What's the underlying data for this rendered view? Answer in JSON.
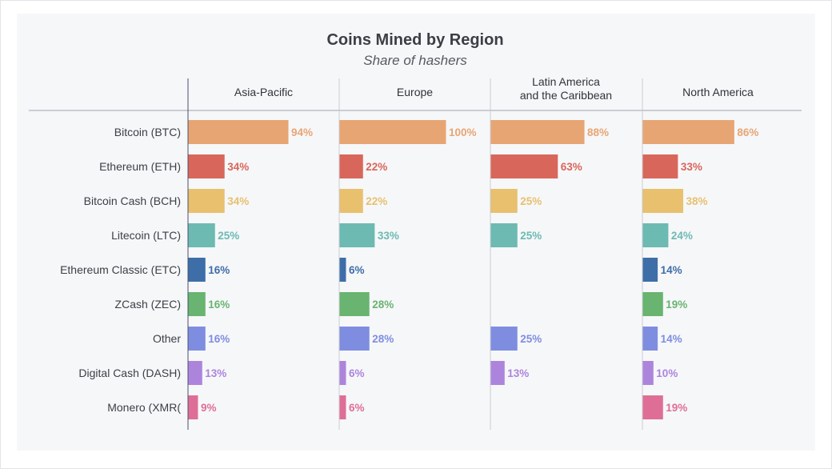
{
  "chart_data": {
    "type": "bar",
    "title": "Coins Mined by Region",
    "subtitle": "Share of hashers",
    "categories": [
      "Bitcoin (BTC)",
      "Ethereum (ETH)",
      "Bitcoin Cash (BCH)",
      "Litecoin (LTC)",
      "Ethereum Classic (ETC)",
      "ZCash (ZEC)",
      "Other",
      "Digital Cash (DASH)",
      "Monero (XMR("
    ],
    "category_colors": [
      "#e8a574",
      "#d9665a",
      "#e8c06e",
      "#6cbab2",
      "#3e6ea8",
      "#68b470",
      "#7f8de0",
      "#ad84dc",
      "#df6e97"
    ],
    "value_label_colors": [
      "#e8a574",
      "#d9665a",
      "#e8c06e",
      "#6cbab2",
      "#3e6ea8",
      "#68b470",
      "#7f8de0",
      "#ad84dc",
      "#df6e97"
    ],
    "unit": "%",
    "xlim": [
      0,
      100
    ],
    "series": [
      {
        "name": "Asia-Pacific",
        "values": [
          94,
          34,
          34,
          25,
          16,
          16,
          16,
          13,
          9
        ]
      },
      {
        "name": "Europe",
        "values": [
          100,
          22,
          22,
          33,
          6,
          28,
          28,
          6,
          6
        ]
      },
      {
        "name": "Latin America and the Caribbean",
        "name_lines": [
          "Latin America",
          "and the Caribbean"
        ],
        "values": [
          88,
          63,
          25,
          25,
          null,
          null,
          25,
          13,
          null
        ]
      },
      {
        "name": "North America",
        "values": [
          86,
          33,
          38,
          24,
          14,
          19,
          14,
          10,
          19
        ]
      }
    ]
  }
}
